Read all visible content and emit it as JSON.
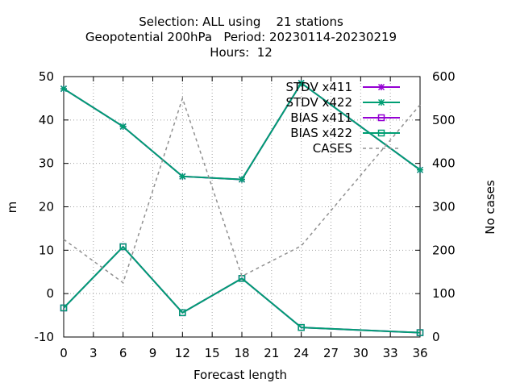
{
  "chart_data": {
    "type": "line",
    "title_lines": [
      "Selection: ALL using    21 stations",
      "Geopotential 200hPa   Period: 20230114-20230219",
      "Hours:  12"
    ],
    "xlabel": "Forecast length",
    "ylabel": "m",
    "y2label": "No cases",
    "xlim": [
      0,
      36
    ],
    "ylim": [
      -10,
      50
    ],
    "y2lim": [
      0,
      600
    ],
    "x_ticks": [
      0,
      3,
      6,
      9,
      12,
      15,
      18,
      21,
      24,
      27,
      30,
      33,
      36
    ],
    "y_ticks": [
      -10,
      0,
      10,
      20,
      30,
      40,
      50
    ],
    "y2_ticks": [
      0,
      100,
      200,
      300,
      400,
      500,
      600
    ],
    "grid": true,
    "legend_position": "top-right",
    "x": [
      0,
      6,
      12,
      18,
      24,
      36
    ],
    "series": [
      {
        "name": "STDV x411",
        "axis": "y",
        "color": "#9400d3",
        "marker": "star",
        "dash": false,
        "values": [
          47.2,
          38.5,
          27.0,
          26.3,
          48.5,
          28.5
        ]
      },
      {
        "name": "STDV x422",
        "axis": "y",
        "color": "#009e73",
        "marker": "star",
        "dash": false,
        "values": [
          47.2,
          38.5,
          27.0,
          26.3,
          48.5,
          28.5
        ]
      },
      {
        "name": "BIAS x411",
        "axis": "y",
        "color": "#9400d3",
        "marker": "square",
        "dash": false,
        "values": [
          -3.3,
          10.8,
          -4.4,
          3.5,
          -7.8,
          -9.0
        ]
      },
      {
        "name": "BIAS x422",
        "axis": "y",
        "color": "#009e73",
        "marker": "square",
        "dash": false,
        "values": [
          -3.3,
          10.8,
          -4.4,
          3.5,
          -7.8,
          -9.0
        ]
      },
      {
        "name": "CASES",
        "axis": "y2",
        "color": "#909090",
        "marker": "none",
        "dash": true,
        "values": [
          225,
          125,
          550,
          140,
          210,
          535
        ]
      }
    ]
  }
}
